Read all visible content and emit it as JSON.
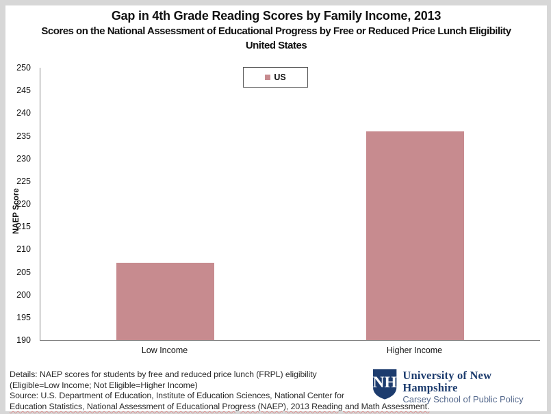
{
  "header": {
    "title": "Gap in 4th Grade Reading Scores by Family Income, 2013",
    "subtitle_line1": "Scores on the National Assessment of Educational Progress by Free or Reduced Price Lunch Eligibility",
    "subtitle_line2": "United States"
  },
  "chart_data": {
    "type": "bar",
    "title": "Gap in 4th Grade Reading Scores by Family Income, 2013",
    "subtitle": "Scores on the National Assessment of Educational Progress by Free or Reduced Price Lunch Eligibility, United States",
    "categories": [
      "Low Income",
      "Higher Income"
    ],
    "series": [
      {
        "name": "US",
        "values": [
          207,
          236
        ]
      }
    ],
    "xlabel": "",
    "ylabel": "NAEP Score",
    "ylim": [
      190,
      250
    ],
    "ytick_step": 5,
    "grid": false,
    "legend_position": "top-center"
  },
  "footer": {
    "line1": "Details: NAEP scores for students by free and reduced price lunch (FRPL) eligibility",
    "line2": "(Eligible=Low Income; Not Eligible=Higher Income)",
    "line3": "Source: U.S. Department of Education, Institute of Education Sciences, National Center for",
    "line4": "Education Statistics, National Assessment of Educational Progress (NAEP), 2013 Reading and Math Assessment."
  },
  "logo": {
    "monogram": "NH",
    "org_name": "University of New Hampshire",
    "unit_name": "Carsey School of Public Policy"
  },
  "colors": {
    "bar": "#C78B8F",
    "axis": "#808080",
    "legend_border": "#595959",
    "logo_navy": "#1D3C6E",
    "logo_slate": "#54688C"
  }
}
